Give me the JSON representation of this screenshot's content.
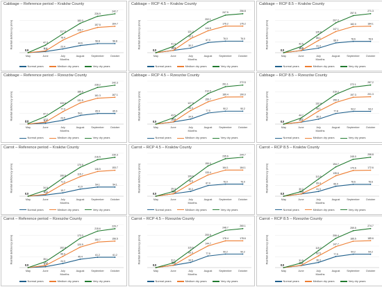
{
  "ylabel": "Rainfall deficiency (mm)",
  "xlabel": "Months",
  "legend": [
    "Normal years",
    "Medium dry years",
    "Very dry years"
  ],
  "colors": [
    "#1f5f8b",
    "#ed7d31",
    "#217a2f"
  ],
  "chart_data": [
    {
      "type": "line",
      "title": "Cabbage – Reference period – Kraków County",
      "categories": [
        "May",
        "June",
        "July",
        "August",
        "September",
        "October"
      ],
      "series": [
        {
          "name": "Normal years",
          "values": [
            0.0,
            7.3,
            23.4,
            44.6,
            56.8,
            56.8
          ]
        },
        {
          "name": "Medium dry years",
          "values": [
            0.0,
            11.1,
            78.4,
            126.7,
            157.5,
            164.7
          ]
        },
        {
          "name": "Very dry years",
          "values": [
            0.4,
            47.3,
            117.0,
            183.3,
            226.9,
            242.7
          ]
        }
      ]
    },
    {
      "type": "line",
      "title": "Cabbage – RCP 4.5 – Kraków County",
      "categories": [
        "May",
        "June",
        "July",
        "August",
        "September",
        "October"
      ],
      "series": [
        {
          "name": "Normal years",
          "values": [
            0.0,
            15.3,
            30.2,
            67.0,
            76.0,
            76.0
          ]
        },
        {
          "name": "Medium dry years",
          "values": [
            0.0,
            14.9,
            92.3,
            144.5,
            175.2,
            175.2
          ]
        },
        {
          "name": "Very dry years",
          "values": [
            0.0,
            41.4,
            121.2,
            202.1,
            247.5,
            256.8
          ]
        }
      ]
    },
    {
      "type": "line",
      "title": "Cabbage – RCP 8.5 – Kraków County",
      "categories": [
        "May",
        "June",
        "July",
        "August",
        "September",
        "October"
      ],
      "series": [
        {
          "name": "Normal years",
          "values": [
            0.0,
            14.5,
            31.3,
            68.0,
            78.6,
            78.6
          ]
        },
        {
          "name": "Medium dry years",
          "values": [
            0.0,
            15.0,
            85.1,
            147.1,
            182.0,
            184.1
          ]
        },
        {
          "name": "Very dry years",
          "values": [
            0.0,
            42.5,
            125.8,
            207.2,
            257.5,
            271.3
          ]
        }
      ]
    },
    {
      "type": "line",
      "title": "Cabbage – Reference period – Rzeszów County",
      "categories": [
        "May",
        "June",
        "July",
        "August",
        "September",
        "October"
      ],
      "series": [
        {
          "name": "Normal years",
          "values": [
            0.0,
            5.5,
            23.5,
            54.1,
            65.9,
            65.9
          ]
        },
        {
          "name": "Medium dry years",
          "values": [
            0.0,
            12.6,
            77.3,
            131.5,
            161.3,
            167.1
          ]
        },
        {
          "name": "Very dry years",
          "values": [
            3.3,
            47.7,
            115.0,
            185.9,
            228.2,
            242.3
          ]
        }
      ]
    },
    {
      "type": "line",
      "title": "Cabbage – RCP 4.5 – Rzeszów County",
      "categories": [
        "May",
        "June",
        "July",
        "August",
        "September",
        "October"
      ],
      "series": [
        {
          "name": "Normal years",
          "values": [
            0.0,
            15.0,
            34.9,
            77.5,
            90.2,
            90.2
          ]
        },
        {
          "name": "Medium dry years",
          "values": [
            0.0,
            15.7,
            95.3,
            155.7,
            189.4,
            190.0
          ]
        },
        {
          "name": "Very dry years",
          "values": [
            0.0,
            43.5,
            127.9,
            212.9,
            261.1,
            272.5
          ]
        }
      ]
    },
    {
      "type": "line",
      "title": "Cabbage – RCP 8.5 – Rzeszów County",
      "categories": [
        "May",
        "June",
        "July",
        "August",
        "September",
        "October"
      ],
      "series": [
        {
          "name": "Normal years",
          "values": [
            0.0,
            14.1,
            36.3,
            77.8,
            94.2,
            94.2
          ]
        },
        {
          "name": "Medium dry years",
          "values": [
            0.0,
            15.7,
            95.1,
            159.4,
            197.3,
            201.3
          ]
        },
        {
          "name": "Very dry years",
          "values": [
            0.0,
            44.7,
            132.4,
            219.2,
            272.1,
            287.2
          ]
        }
      ]
    },
    {
      "type": "line",
      "title": "Carrot – Reference period – Kraków County",
      "categories": [
        "May",
        "June",
        "July",
        "August",
        "September",
        "October"
      ],
      "series": [
        {
          "name": "Normal years",
          "values": [
            0.0,
            7.1,
            19.7,
            41.9,
            54.1,
            54.1
          ]
        },
        {
          "name": "Medium dry years",
          "values": [
            0.0,
            11.3,
            71.2,
            115.7,
            146.5,
            153.7
          ]
        },
        {
          "name": "Very dry years",
          "values": [
            0.0,
            34.9,
            106.6,
            170.9,
            216.5,
            230.3
          ]
        }
      ]
    },
    {
      "type": "line",
      "title": "Carrot – RCP 4.5 – Kraków County",
      "categories": [
        "May",
        "June",
        "July",
        "August",
        "September",
        "October"
      ],
      "series": [
        {
          "name": "Normal years",
          "values": [
            0.0,
            15.3,
            30.2,
            67.0,
            76.0,
            76.0
          ]
        },
        {
          "name": "Medium dry years",
          "values": [
            0.0,
            14.9,
            78.6,
            133.4,
            164.1,
            164.1
          ]
        },
        {
          "name": "Very dry years",
          "values": [
            0.0,
            29.3,
            109.6,
            190.0,
            235.6,
            244.7
          ]
        }
      ]
    },
    {
      "type": "line",
      "title": "Carrot – RCP 8.5 – Kraków County",
      "categories": [
        "May",
        "June",
        "July",
        "August",
        "September",
        "October"
      ],
      "series": [
        {
          "name": "Normal years",
          "values": [
            0.0,
            14.5,
            31.3,
            66.0,
            78.6,
            78.6
          ]
        },
        {
          "name": "Medium dry years",
          "values": [
            0.0,
            15.0,
            69.4,
            135.6,
            170.6,
            172.6
          ]
        },
        {
          "name": "Very dry years",
          "values": [
            0.0,
            30.2,
            113.5,
            194.7,
            245.0,
            258.8
          ]
        }
      ]
    },
    {
      "type": "line",
      "title": "Carrot – Reference period – Rzeszów County",
      "categories": [
        "May",
        "June",
        "July",
        "August",
        "September",
        "October"
      ],
      "series": [
        {
          "name": "Normal years",
          "values": [
            0.0,
            5.5,
            24.3,
            49.4,
            61.2,
            61.2
          ]
        },
        {
          "name": "Medium dry years",
          "values": [
            0.0,
            12.6,
            66.3,
            120.9,
            150.7,
            156.5
          ]
        },
        {
          "name": "Very dry years",
          "values": [
            0.0,
            35.1,
            102.4,
            173.3,
            215.6,
            229.7
          ]
        }
      ]
    },
    {
      "type": "line",
      "title": "Carrot – RCP 4.5 – Rzeszów County",
      "categories": [
        "May",
        "June",
        "July",
        "August",
        "September",
        "October"
      ],
      "series": [
        {
          "name": "Normal years",
          "values": [
            0.0,
            15.0,
            34.9,
            77.5,
            90.2,
            90.2
          ]
        },
        {
          "name": "Medium dry years",
          "values": [
            0.0,
            15.7,
            83.3,
            144.7,
            178.4,
            178.6
          ]
        },
        {
          "name": "Very dry years",
          "values": [
            0.0,
            31.1,
            115.6,
            200.6,
            248.7,
            260.1
          ]
        }
      ]
    },
    {
      "type": "line",
      "title": "Carrot – RCP 8.5 – Rzeszów County",
      "categories": [
        "May",
        "June",
        "July",
        "August",
        "September",
        "October"
      ],
      "series": [
        {
          "name": "Normal years",
          "values": [
            0.0,
            14.1,
            36.3,
            77.9,
            94.2,
            94.2
          ]
        },
        {
          "name": "Medium dry years",
          "values": [
            0.0,
            15.7,
            82.5,
            147.7,
            185.5,
            189.6
          ]
        },
        {
          "name": "Very dry years",
          "values": [
            0.0,
            31.9,
            119.7,
            206.4,
            259.5,
            274.7
          ]
        }
      ]
    }
  ]
}
